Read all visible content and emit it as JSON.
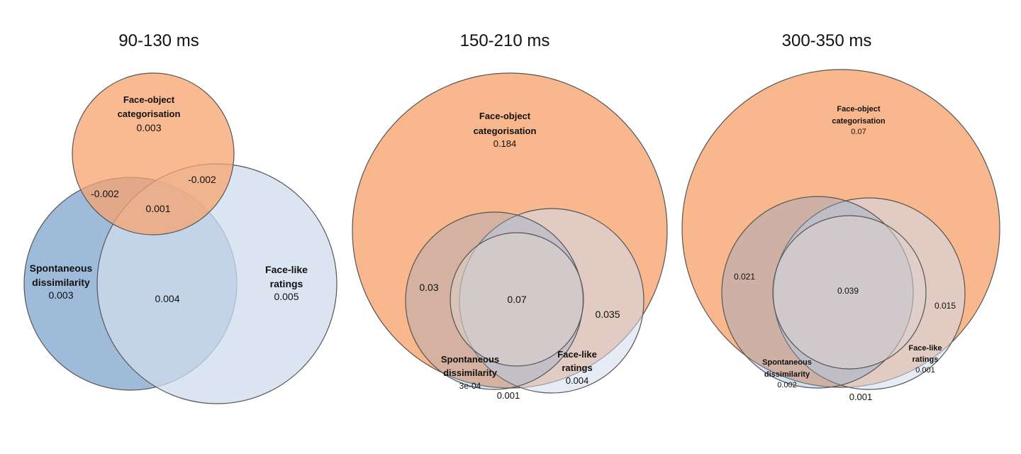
{
  "colors": {
    "orange": "#f7a36e",
    "dark_blue": "#7ea6cd",
    "light_blue": "#cfdcee",
    "stroke": "#555555"
  },
  "panels": [
    {
      "title": "90-130 ms",
      "sets": {
        "face_object": {
          "label_line1": "Face-object",
          "label_line2": "categorisation",
          "value": "0.003"
        },
        "spontaneous": {
          "label_line1": "Spontaneous",
          "label_line2": "dissimilarity",
          "value": "0.003"
        },
        "face_like": {
          "label_line1": "Face-like",
          "label_line2": "ratings",
          "value": "0.005"
        }
      },
      "overlaps": {
        "face_object_spontaneous": "-0.002",
        "face_object_face_like": "-0.002",
        "all_three": "0.001",
        "spontaneous_face_like": "0.004"
      }
    },
    {
      "title": "150-210 ms",
      "sets": {
        "face_object": {
          "label_line1": "Face-object",
          "label_line2": "categorisation",
          "value": "0.184"
        },
        "spontaneous": {
          "label_line1": "Spontaneous",
          "label_line2": "dissimilarity",
          "value": "3e-04"
        },
        "face_like": {
          "label_line1": "Face-like",
          "label_line2": "ratings",
          "value": "0.004"
        }
      },
      "overlaps": {
        "face_object_spontaneous": "0.03",
        "face_object_face_like": "0.035",
        "all_three": "0.07",
        "spontaneous_face_like": "0.001"
      }
    },
    {
      "title": "300-350 ms",
      "sets": {
        "face_object": {
          "label_line1": "Face-object",
          "label_line2": "categorisation",
          "value": "0.07"
        },
        "spontaneous": {
          "label_line1": "Spontaneous",
          "label_line2": "dissimilarity",
          "value": "0.002"
        },
        "face_like": {
          "label_line1": "Face-like",
          "label_line2": "ratings",
          "value": "0.001"
        }
      },
      "overlaps": {
        "face_object_spontaneous": "0.021",
        "face_object_face_like": "0.015",
        "all_three": "0.039",
        "spontaneous_face_like": "0.001"
      }
    }
  ]
}
